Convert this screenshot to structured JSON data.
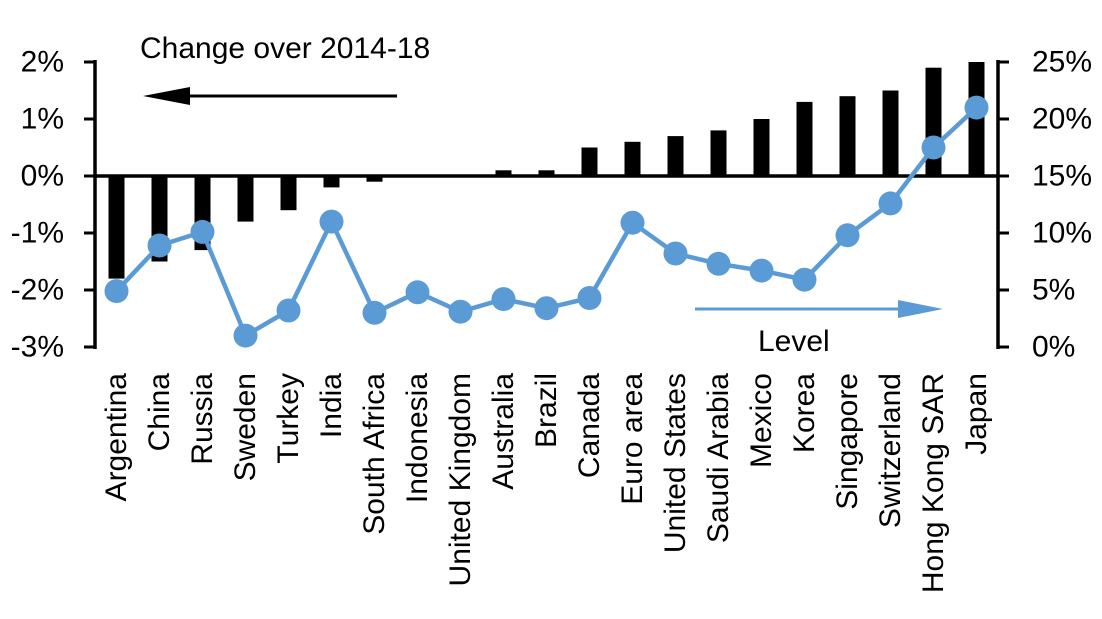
{
  "annotations": {
    "change_label": "Change over 2014-18",
    "change_arrow_direction": "left",
    "change_arrow_color": "#000000",
    "level_label": "Level",
    "level_arrow_direction": "right",
    "level_arrow_color": "#5B9BD5"
  },
  "chart_data": {
    "type": "bar+line",
    "title": "",
    "grid": false,
    "background": "#FFFFFF",
    "categories": [
      "Argentina",
      "China",
      "Russia",
      "Sweden",
      "Turkey",
      "India",
      "South Africa",
      "Indonesia",
      "United Kingdom",
      "Australia",
      "Brazil",
      "Canada",
      "Euro area",
      "United States",
      "Saudi Arabia",
      "Mexico",
      "Korea",
      "Singapore",
      "Switzerland",
      "Hong Kong SAR",
      "Japan"
    ],
    "series": [
      {
        "name": "Change over 2014-18",
        "type": "bar",
        "axis": "left",
        "color": "#000000",
        "values": [
          -1.8,
          -1.5,
          -1.3,
          -0.8,
          -0.6,
          -0.2,
          -0.1,
          0.0,
          0.0,
          0.1,
          0.1,
          0.5,
          0.6,
          0.7,
          0.8,
          1.0,
          1.3,
          1.4,
          1.5,
          1.9,
          2.0
        ]
      },
      {
        "name": "Level",
        "type": "line",
        "axis": "right",
        "color": "#5B9BD5",
        "values": [
          4.9,
          8.9,
          10.1,
          1.0,
          3.2,
          11.0,
          3.0,
          4.8,
          3.1,
          4.2,
          3.4,
          4.3,
          10.9,
          8.2,
          7.3,
          6.7,
          5.9,
          9.8,
          12.6,
          17.5,
          21.0
        ]
      }
    ],
    "left_axis": {
      "min": -3,
      "max": 2,
      "step": 1,
      "unit": "%",
      "ticks": [
        "2%",
        "1%",
        "0%",
        "-1%",
        "-2%",
        "-3%"
      ]
    },
    "right_axis": {
      "min": 0,
      "max": 25,
      "step": 5,
      "unit": "%",
      "ticks": [
        "25%",
        "20%",
        "15%",
        "10%",
        "5%",
        "0%"
      ]
    }
  }
}
